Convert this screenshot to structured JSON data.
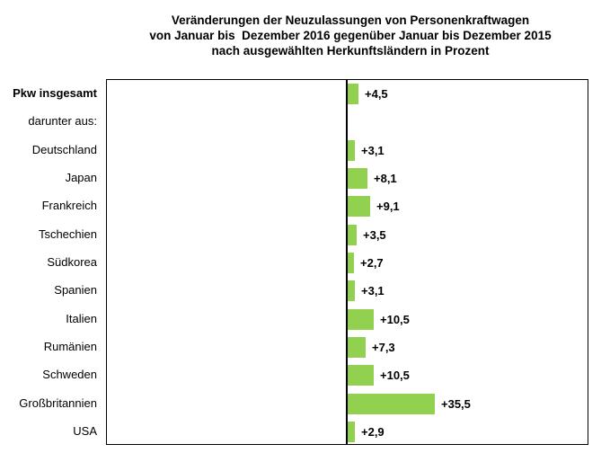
{
  "title": {
    "line1": "Veränderungen der Neuzulassungen von Personenkraftwagen",
    "line2": "von Januar bis  Dezember 2016 gegenüber Januar bis Dezember 2015",
    "line3": "nach ausgewählten Herkunftsländern in Prozent"
  },
  "chart_data": {
    "type": "bar",
    "orientation": "horizontal",
    "title": "Veränderungen der Neuzulassungen von Personenkraftwagen von Januar bis Dezember 2016 gegenüber Januar bis Dezember 2015 nach ausgewählten Herkunftsländern in Prozent",
    "unit": "Prozent",
    "categories": [
      "Pkw insgesamt",
      "darunter aus:",
      "Deutschland",
      "Japan",
      "Frankreich",
      "Tschechien",
      "Südkorea",
      "Spanien",
      "Italien",
      "Rumänien",
      "Schweden",
      "Großbritannien",
      "USA"
    ],
    "values": [
      4.5,
      null,
      3.1,
      8.1,
      9.1,
      3.5,
      2.7,
      3.1,
      10.5,
      7.3,
      10.5,
      35.5,
      2.9
    ],
    "value_labels": [
      "+4,5",
      "",
      "+3,1",
      "+8,1",
      "+9,1",
      "+3,5",
      "+2,7",
      "+3,1",
      "+10,5",
      "+7,3",
      "+10,5",
      "+35,5",
      "+2,9"
    ],
    "bold_rows": [
      0
    ],
    "xlim": [
      -100,
      100
    ],
    "grid": false,
    "legend": false,
    "bar_color": "#92d050",
    "axis_color": "#000000",
    "border_color": "#000000",
    "text_color": "#000000"
  }
}
